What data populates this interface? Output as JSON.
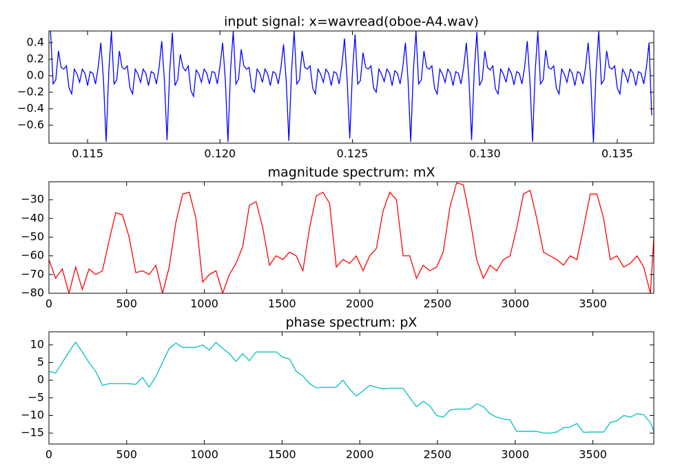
{
  "chart_data": [
    {
      "type": "line",
      "title": "input signal: x=wavread(oboe-A4.wav)",
      "color": "#0000ff",
      "xlim": [
        0.11354,
        0.13638
      ],
      "ylim": [
        -0.817,
        0.542
      ],
      "xticks": [
        0.115,
        {
          "value": 0.12,
          "label": "0.120"
        },
        0.125,
        {
          "value": 0.13,
          "label": "0.130"
        },
        0.135
      ],
      "yticks": [
        {
          "value": -0.6,
          "label": "−0.6"
        },
        {
          "value": -0.4,
          "label": "−0.4"
        },
        {
          "value": -0.2,
          "label": "−0.2"
        },
        {
          "value": 0,
          "label": "0.0"
        },
        0.2,
        0.4
      ],
      "x": [
        0.1136,
        0.1137,
        0.1138,
        0.1139,
        0.114,
        0.1141,
        0.1142,
        0.1143,
        0.1144,
        0.1145,
        0.1146,
        0.1147,
        0.1148,
        0.1149,
        0.115,
        0.1151,
        0.1152,
        0.1153,
        0.1154,
        0.1155,
        0.1156,
        0.1157,
        0.1158,
        0.1159,
        0.116,
        0.1161,
        0.1162,
        0.1163,
        0.1164,
        0.1165,
        0.1166,
        0.1167,
        0.1168,
        0.1169,
        0.117,
        0.1171,
        0.1172,
        0.1173,
        0.1174,
        0.1175,
        0.1176,
        0.1177,
        0.1178,
        0.1179,
        0.118,
        0.1181,
        0.1182,
        0.1183,
        0.1184,
        0.1185,
        0.1186,
        0.1187,
        0.1188,
        0.1189,
        0.119,
        0.1191,
        0.1192,
        0.1193,
        0.1194,
        0.1195,
        0.1196,
        0.1197,
        0.1198,
        0.1199,
        0.12,
        0.1201,
        0.1202,
        0.1203,
        0.1204,
        0.1205,
        0.1206,
        0.1207,
        0.1208,
        0.1209,
        0.121,
        0.1211,
        0.1212,
        0.1213,
        0.1214,
        0.1215,
        0.1216,
        0.1217,
        0.1218,
        0.1219,
        0.122,
        0.1221,
        0.1222,
        0.1223,
        0.1224,
        0.1225,
        0.1226,
        0.1227,
        0.1228,
        0.1229,
        0.123,
        0.1231,
        0.1232,
        0.1233,
        0.1234,
        0.1235,
        0.1236,
        0.1237,
        0.1238,
        0.1239,
        0.124,
        0.1241,
        0.1242,
        0.1243,
        0.1244,
        0.1245,
        0.1246,
        0.1247,
        0.1248,
        0.1249,
        0.125,
        0.1251,
        0.1252,
        0.1253,
        0.1254,
        0.1255,
        0.1256,
        0.1257,
        0.1258,
        0.1259,
        0.126,
        0.1261,
        0.1262,
        0.1263,
        0.1264,
        0.1265,
        0.1266,
        0.1267,
        0.1268,
        0.1269,
        0.127,
        0.1271,
        0.1272,
        0.1273,
        0.1274,
        0.1275,
        0.1276,
        0.1277,
        0.1278,
        0.1279,
        0.128,
        0.1281,
        0.1282,
        0.1283,
        0.1284,
        0.1285,
        0.1286,
        0.1287,
        0.1288,
        0.1289,
        0.129,
        0.1291,
        0.1292,
        0.1293,
        0.1294,
        0.1295,
        0.1296,
        0.1297,
        0.1298,
        0.1299,
        0.13,
        0.1301,
        0.1302,
        0.1303,
        0.1304,
        0.1305,
        0.1306,
        0.1307,
        0.1308,
        0.1309,
        0.131,
        0.1311,
        0.1312,
        0.1313,
        0.1314,
        0.1315,
        0.1316,
        0.1317,
        0.1318,
        0.1319,
        0.132,
        0.1321,
        0.1322,
        0.1323,
        0.1324,
        0.1325,
        0.1326,
        0.1327,
        0.1328,
        0.1329,
        0.133,
        0.1331,
        0.1332,
        0.1333,
        0.1334,
        0.1335,
        0.1336,
        0.1337,
        0.1338,
        0.1339,
        0.134,
        0.1341,
        0.1342,
        0.1343,
        0.1344,
        0.1345,
        0.1346,
        0.1347,
        0.1348,
        0.1349,
        0.135,
        0.1351,
        0.1352,
        0.1353,
        0.1354,
        0.1355,
        0.1356,
        0.1357,
        0.1358,
        0.1359,
        0.136,
        0.1361,
        0.1362,
        0.1363
      ],
      "values": [
        0.54,
        -0.1,
        -0.05,
        0.3,
        0.1,
        0.08,
        0.12,
        -0.15,
        -0.22,
        0.08,
        0.02,
        -0.08,
        0.08,
        0.03,
        -0.12,
        0.05,
        0.03,
        -0.1,
        0.1,
        0.4,
        -0.05,
        -0.8,
        0.05,
        0.54,
        -0.1,
        -0.05,
        0.3,
        0.1,
        0.08,
        0.12,
        -0.15,
        -0.22,
        0.08,
        0.02,
        -0.08,
        0.08,
        0.03,
        -0.12,
        0.05,
        0.03,
        -0.1,
        0.1,
        0.42,
        -0.05,
        -0.78,
        0.05,
        0.52,
        -0.12,
        -0.05,
        0.26,
        0.1,
        0.06,
        0.12,
        -0.18,
        -0.25,
        0.07,
        0.02,
        -0.08,
        0.08,
        0.03,
        -0.1,
        0.05,
        0.04,
        -0.1,
        0.12,
        0.4,
        -0.05,
        -0.8,
        0.08,
        0.54,
        -0.1,
        -0.04,
        0.32,
        0.12,
        0.08,
        0.1,
        -0.15,
        -0.2,
        0.08,
        0.03,
        -0.08,
        0.08,
        0.02,
        -0.12,
        0.05,
        0.03,
        -0.1,
        0.1,
        0.38,
        -0.06,
        -0.79,
        0.05,
        0.54,
        -0.1,
        -0.05,
        0.3,
        0.1,
        0.08,
        0.12,
        -0.15,
        -0.22,
        0.08,
        0.02,
        -0.08,
        0.08,
        0.03,
        -0.12,
        0.05,
        0.03,
        -0.1,
        0.12,
        0.45,
        -0.05,
        -0.76,
        0.04,
        0.5,
        -0.1,
        -0.06,
        0.28,
        0.1,
        0.08,
        0.12,
        -0.15,
        -0.2,
        0.08,
        0.02,
        -0.07,
        0.08,
        0.03,
        -0.12,
        0.06,
        0.03,
        -0.1,
        0.1,
        0.4,
        -0.05,
        -0.8,
        0.05,
        0.54,
        -0.1,
        -0.05,
        0.3,
        0.1,
        0.08,
        0.12,
        -0.15,
        -0.22,
        0.08,
        0.02,
        -0.08,
        0.08,
        0.03,
        -0.12,
        0.05,
        0.03,
        -0.1,
        0.1,
        0.4,
        -0.05,
        -0.78,
        0.06,
        0.53,
        -0.12,
        -0.05,
        0.3,
        0.1,
        0.07,
        0.12,
        -0.16,
        -0.22,
        0.08,
        0.02,
        -0.08,
        0.09,
        0.03,
        -0.11,
        0.05,
        0.03,
        -0.1,
        0.1,
        0.42,
        -0.05,
        -0.8,
        0.05,
        0.54,
        -0.1,
        -0.05,
        0.31,
        0.1,
        0.08,
        0.12,
        -0.15,
        -0.22,
        0.08,
        0.02,
        -0.08,
        0.08,
        0.03,
        -0.12,
        0.05,
        0.03,
        -0.1,
        0.1,
        0.4,
        -0.05,
        -0.81,
        0.05,
        0.54,
        -0.1,
        -0.05,
        0.3,
        0.1,
        0.08,
        0.12,
        -0.15,
        -0.22,
        0.08,
        0.02,
        -0.08,
        0.08,
        0.03,
        -0.12,
        0.05,
        0.03,
        -0.1,
        0.1,
        0.4,
        -0.48
      ]
    },
    {
      "type": "line",
      "title": "magnitude spectrum: mX",
      "color": "#ff0000",
      "xlim": [
        0,
        3892
      ],
      "ylim": [
        -80,
        -20.4
      ],
      "xticks": [
        0,
        500,
        1000,
        1500,
        2000,
        2500,
        3000,
        3500
      ],
      "yticks": [
        {
          "value": -80,
          "label": "−80"
        },
        {
          "value": -70,
          "label": "−70"
        },
        {
          "value": -60,
          "label": "−60"
        },
        {
          "value": -50,
          "label": "−50"
        },
        {
          "value": -40,
          "label": "−40"
        },
        {
          "value": -30,
          "label": "−30"
        }
      ],
      "x": [
        0,
        43,
        86,
        129,
        172,
        215,
        258,
        301,
        344,
        387,
        430,
        473,
        516,
        559,
        602,
        645,
        688,
        731,
        774,
        817,
        860,
        903,
        946,
        989,
        1032,
        1075,
        1118,
        1161,
        1204,
        1247,
        1290,
        1333,
        1376,
        1419,
        1462,
        1505,
        1548,
        1591,
        1634,
        1677,
        1720,
        1763,
        1806,
        1849,
        1892,
        1935,
        1978,
        2021,
        2064,
        2107,
        2150,
        2193,
        2236,
        2279,
        2322,
        2365,
        2408,
        2451,
        2494,
        2537,
        2580,
        2623,
        2666,
        2709,
        2752,
        2795,
        2838,
        2881,
        2924,
        2967,
        3010,
        3053,
        3096,
        3139,
        3182,
        3225,
        3268,
        3311,
        3354,
        3397,
        3440,
        3483,
        3526,
        3569,
        3612,
        3655,
        3698,
        3741,
        3784,
        3827,
        3870,
        3892
      ],
      "values": [
        -62,
        -72,
        -67,
        -80,
        -66,
        -78,
        -67,
        -70,
        -68,
        -52,
        -37,
        -38,
        -50,
        -69,
        -68,
        -70,
        -65,
        -80,
        -66,
        -42,
        -27,
        -26,
        -40,
        -74,
        -70,
        -68,
        -80,
        -70,
        -64,
        -55,
        -33,
        -31,
        -45,
        -65,
        -60,
        -62,
        -58,
        -60,
        -68,
        -45,
        -28,
        -26,
        -32,
        -66,
        -62,
        -64,
        -60,
        -68,
        -60,
        -56,
        -36,
        -26,
        -30,
        -60,
        -60,
        -72,
        -65,
        -68,
        -66,
        -58,
        -34,
        -21,
        -22,
        -40,
        -62,
        -72,
        -65,
        -68,
        -62,
        -60,
        -45,
        -27,
        -25,
        -40,
        -58,
        -60,
        -62,
        -65,
        -60,
        -62,
        -45,
        -27,
        -27,
        -40,
        -62,
        -60,
        -66,
        -64,
        -60,
        -66,
        -80,
        -50
      ]
    },
    {
      "type": "line",
      "title": "phase spectrum: pX",
      "color": "#00bfbf",
      "xlim": [
        0,
        3892
      ],
      "ylim": [
        -18.1,
        13.7
      ],
      "xticks": [
        0,
        500,
        1000,
        1500,
        2000,
        2500,
        3000,
        3500
      ],
      "yticks": [
        {
          "value": -15,
          "label": "−15"
        },
        {
          "value": -10,
          "label": "−10"
        },
        {
          "value": -5,
          "label": "−5"
        },
        0,
        5,
        10
      ],
      "x": [
        0,
        43,
        86,
        129,
        172,
        215,
        258,
        301,
        344,
        387,
        430,
        473,
        516,
        559,
        602,
        645,
        688,
        731,
        774,
        817,
        860,
        903,
        946,
        989,
        1032,
        1075,
        1118,
        1161,
        1204,
        1247,
        1290,
        1333,
        1376,
        1419,
        1462,
        1505,
        1548,
        1591,
        1634,
        1677,
        1720,
        1763,
        1806,
        1849,
        1892,
        1935,
        1978,
        2021,
        2064,
        2107,
        2150,
        2193,
        2236,
        2279,
        2322,
        2365,
        2408,
        2451,
        2494,
        2537,
        2580,
        2623,
        2666,
        2709,
        2752,
        2795,
        2838,
        2881,
        2924,
        2967,
        3010,
        3053,
        3096,
        3139,
        3182,
        3225,
        3268,
        3311,
        3354,
        3397,
        3440,
        3483,
        3526,
        3569,
        3612,
        3655,
        3698,
        3741,
        3784,
        3827,
        3870,
        3892
      ],
      "values": [
        2.5,
        2,
        5,
        8,
        10.8,
        8,
        5,
        2.5,
        -1.5,
        -1,
        -1,
        -1,
        -1,
        -1.2,
        0.8,
        -2,
        1,
        5,
        9,
        10.5,
        9.3,
        9.3,
        9.3,
        10,
        8.5,
        10.7,
        9,
        7.5,
        5.3,
        7.5,
        5.5,
        8,
        8,
        8,
        8,
        6.5,
        6,
        2.5,
        1.2,
        -1,
        -2.2,
        -2,
        -2,
        -2,
        0,
        -2.5,
        -4.5,
        -3,
        -1.5,
        -2,
        -2.5,
        -2.3,
        -2.3,
        -2.3,
        -5,
        -7.5,
        -6,
        -7.3,
        -10,
        -10.5,
        -8.5,
        -8.2,
        -8.2,
        -8.2,
        -6.7,
        -7.5,
        -9.5,
        -10.5,
        -11,
        -11.3,
        -14.5,
        -14.5,
        -14.5,
        -14.5,
        -15,
        -15,
        -14.7,
        -13.5,
        -13.3,
        -12.3,
        -14.8,
        -14.7,
        -14.7,
        -14.7,
        -12,
        -11.5,
        -10,
        -10.5,
        -9.5,
        -9.8,
        -12,
        -14.5
      ]
    }
  ]
}
